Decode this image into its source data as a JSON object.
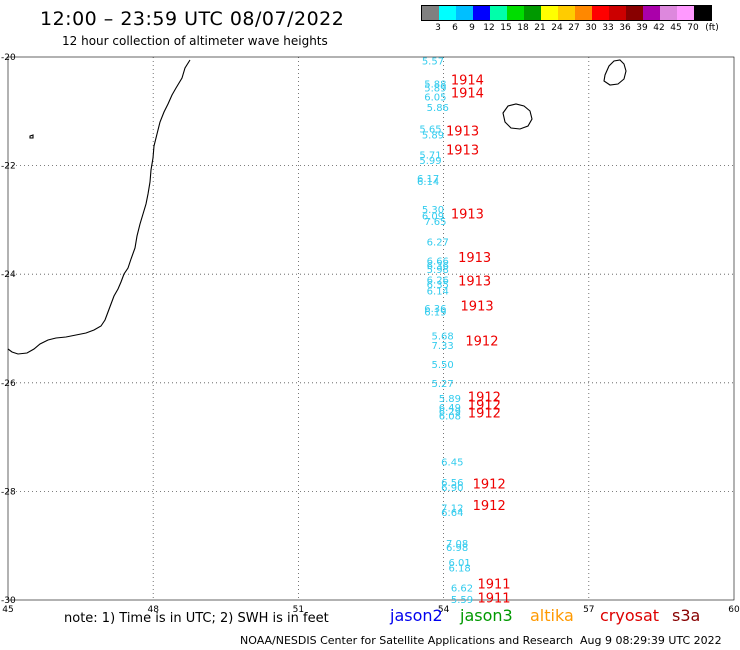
{
  "header": {
    "title": "12:00 – 23:59 UTC 08/07/2022",
    "subtitle": "12 hour collection of altimeter wave heights"
  },
  "scale": {
    "colors": [
      "#808080",
      "#00ffff",
      "#00bfff",
      "#0000ff",
      "#00ffaa",
      "#00dd00",
      "#009900",
      "#ffff00",
      "#ffcc00",
      "#ff8800",
      "#ff0000",
      "#cc0000",
      "#880000",
      "#aa00aa",
      "#dd88dd",
      "#ff99ff",
      "#000000"
    ],
    "labels": [
      "3",
      "6",
      "9",
      "12",
      "15",
      "18",
      "21",
      "24",
      "27",
      "30",
      "33",
      "36",
      "39",
      "42",
      "45",
      "70",
      "(ft)"
    ]
  },
  "map": {
    "x_range": [
      45,
      60
    ],
    "y_range": [
      -20,
      -30
    ],
    "x_ticks": [
      "45",
      "48",
      "51",
      "54",
      "57",
      "60"
    ],
    "y_ticks": [
      "-20",
      "-22",
      "-24",
      "-26",
      "-28",
      "-30"
    ],
    "track_color": "#33ccee",
    "time_color": "#ee0000",
    "observations": [
      {
        "lon": 53.55,
        "lat": -20.06,
        "swh": "5.57"
      },
      {
        "lon": 53.6,
        "lat": -20.49,
        "swh": "5.88"
      },
      {
        "lon": 53.6,
        "lat": -20.56,
        "swh": "5.89"
      },
      {
        "lon": 53.6,
        "lat": -20.73,
        "swh": "6.05"
      },
      {
        "lon": 53.65,
        "lat": -20.92,
        "swh": "5.86"
      },
      {
        "lon": 53.5,
        "lat": -21.32,
        "swh": "5.65"
      },
      {
        "lon": 53.55,
        "lat": -21.43,
        "swh": "5.89"
      },
      {
        "lon": 53.5,
        "lat": -21.8,
        "swh": "5.71"
      },
      {
        "lon": 53.5,
        "lat": -21.9,
        "swh": "5.99"
      },
      {
        "lon": 53.45,
        "lat": -22.23,
        "swh": "6.17"
      },
      {
        "lon": 53.45,
        "lat": -22.28,
        "swh": "6.14"
      },
      {
        "lon": 53.55,
        "lat": -22.8,
        "swh": "5.30"
      },
      {
        "lon": 53.55,
        "lat": -22.92,
        "swh": "6.09"
      },
      {
        "lon": 53.6,
        "lat": -23.02,
        "swh": "7.65"
      },
      {
        "lon": 53.65,
        "lat": -23.4,
        "swh": "6.27"
      },
      {
        "lon": 53.65,
        "lat": -23.75,
        "swh": "6.66"
      },
      {
        "lon": 53.65,
        "lat": -23.83,
        "swh": "6.36"
      },
      {
        "lon": 53.65,
        "lat": -23.9,
        "swh": "5.98"
      },
      {
        "lon": 53.65,
        "lat": -24.1,
        "swh": "6.26"
      },
      {
        "lon": 53.65,
        "lat": -24.18,
        "swh": "6.35"
      },
      {
        "lon": 53.65,
        "lat": -24.3,
        "swh": "6.14"
      },
      {
        "lon": 53.6,
        "lat": -24.62,
        "swh": "6.36"
      },
      {
        "lon": 53.6,
        "lat": -24.69,
        "swh": "6.19"
      },
      {
        "lon": 53.75,
        "lat": -25.13,
        "swh": "5.68"
      },
      {
        "lon": 53.75,
        "lat": -25.3,
        "swh": "7.33"
      },
      {
        "lon": 53.75,
        "lat": -25.65,
        "swh": "5.50"
      },
      {
        "lon": 53.75,
        "lat": -26.0,
        "swh": "5.27"
      },
      {
        "lon": 53.9,
        "lat": -26.28,
        "swh": "5.89"
      },
      {
        "lon": 53.9,
        "lat": -26.45,
        "swh": "6.49"
      },
      {
        "lon": 53.9,
        "lat": -26.52,
        "swh": "6.29"
      },
      {
        "lon": 53.9,
        "lat": -26.6,
        "swh": "6.08"
      },
      {
        "lon": 53.95,
        "lat": -27.45,
        "swh": "6.45"
      },
      {
        "lon": 53.95,
        "lat": -27.83,
        "swh": "6.56"
      },
      {
        "lon": 53.95,
        "lat": -27.92,
        "swh": "6.90"
      },
      {
        "lon": 53.95,
        "lat": -28.3,
        "swh": "7.12"
      },
      {
        "lon": 53.95,
        "lat": -28.38,
        "swh": "6.64"
      },
      {
        "lon": 54.05,
        "lat": -28.95,
        "swh": "7.08"
      },
      {
        "lon": 54.05,
        "lat": -29.02,
        "swh": "6.98"
      },
      {
        "lon": 54.1,
        "lat": -29.3,
        "swh": "6.01"
      },
      {
        "lon": 54.1,
        "lat": -29.4,
        "swh": "6.18"
      },
      {
        "lon": 54.15,
        "lat": -29.77,
        "swh": "6.62"
      },
      {
        "lon": 54.15,
        "lat": -29.98,
        "swh": "5.59"
      }
    ],
    "times": [
      {
        "lon": 54.15,
        "lat": -20.41,
        "label": "1914"
      },
      {
        "lon": 54.15,
        "lat": -20.65,
        "label": "1914"
      },
      {
        "lon": 54.05,
        "lat": -21.35,
        "label": "1913"
      },
      {
        "lon": 54.05,
        "lat": -21.7,
        "label": "1913"
      },
      {
        "lon": 54.15,
        "lat": -22.88,
        "label": "1913"
      },
      {
        "lon": 54.3,
        "lat": -23.68,
        "label": "1913"
      },
      {
        "lon": 54.3,
        "lat": -24.12,
        "label": "1913"
      },
      {
        "lon": 54.35,
        "lat": -24.58,
        "label": "1913"
      },
      {
        "lon": 54.45,
        "lat": -25.22,
        "label": "1912"
      },
      {
        "lon": 54.5,
        "lat": -26.25,
        "label": "1912"
      },
      {
        "lon": 54.5,
        "lat": -26.4,
        "label": "1912"
      },
      {
        "lon": 54.5,
        "lat": -26.55,
        "label": "1912"
      },
      {
        "lon": 54.6,
        "lat": -27.85,
        "label": "1912"
      },
      {
        "lon": 54.6,
        "lat": -28.25,
        "label": "1912"
      },
      {
        "lon": 54.7,
        "lat": -29.7,
        "label": "1911"
      },
      {
        "lon": 54.7,
        "lat": -29.95,
        "label": "1911"
      }
    ]
  },
  "footer": {
    "note": "note:  1) Time is in UTC;  2) SWH is in feet",
    "satellites": [
      {
        "name": "jason2",
        "color": "#0000ee"
      },
      {
        "name": "jason3",
        "color": "#009900"
      },
      {
        "name": "altika",
        "color": "#ff9900"
      },
      {
        "name": "cryosat",
        "color": "#dd0000"
      },
      {
        "name": "s3a",
        "color": "#880000"
      }
    ],
    "credit": "NOAA/NESDIS Center for Satellite Applications and Research",
    "timestamp": "Aug  9 08:29:39 UTC 2022"
  }
}
